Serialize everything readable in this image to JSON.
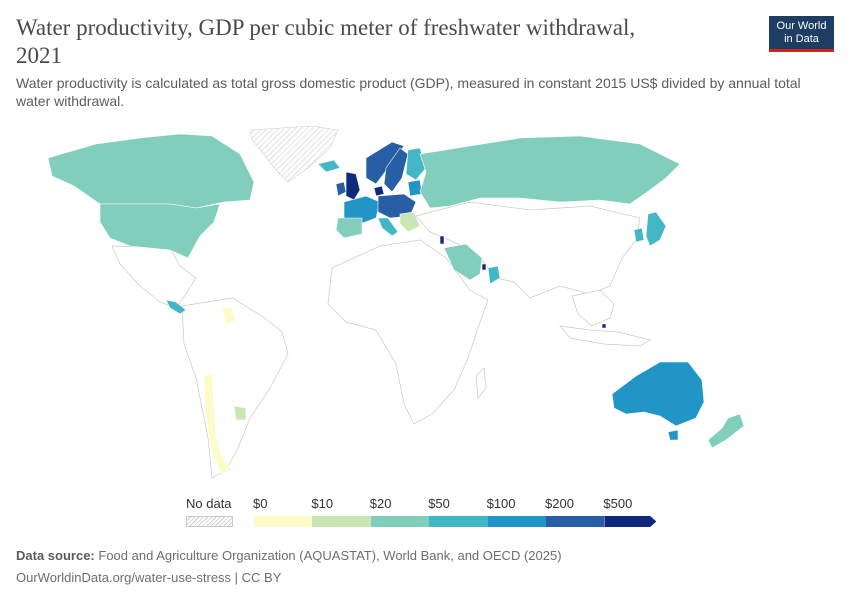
{
  "header": {
    "title_line1": "Water productivity, GDP per cubic meter of freshwater withdrawal,",
    "title_line2": "2021",
    "subtitle": "Water productivity is calculated as total gross domestic product (GDP), measured in constant 2015 US$ divided by annual total water withdrawal.",
    "logo_line1": "Our World",
    "logo_line2": "in Data"
  },
  "legend": {
    "no_data_label": "No data",
    "bins": [
      {
        "label": "$0",
        "color": "#fefbc9"
      },
      {
        "label": "$10",
        "color": "#c9e7b5"
      },
      {
        "label": "$20",
        "color": "#80cebb"
      },
      {
        "label": "$50",
        "color": "#43b7c6"
      },
      {
        "label": "$100",
        "color": "#2095c6"
      },
      {
        "label": "$200",
        "color": "#275ea5"
      },
      {
        "label": "$500",
        "color": ""
      }
    ],
    "last_color": "#0f2a7d"
  },
  "map": {
    "no_data_color": "#ffffff",
    "regions": [
      {
        "id": "canada",
        "value": 20
      },
      {
        "id": "usa",
        "value": 20
      },
      {
        "id": "greenland",
        "value": null
      },
      {
        "id": "iceland",
        "value": 50
      },
      {
        "id": "chile",
        "value": 0
      },
      {
        "id": "uruguay",
        "value": 10
      },
      {
        "id": "central-america",
        "value": 50
      },
      {
        "id": "guyana",
        "value": 0
      },
      {
        "id": "uk",
        "value": 500
      },
      {
        "id": "ireland",
        "value": 200
      },
      {
        "id": "norway",
        "value": 200
      },
      {
        "id": "sweden",
        "value": 200
      },
      {
        "id": "finland",
        "value": 50
      },
      {
        "id": "denmark",
        "value": 500
      },
      {
        "id": "baltics",
        "value": 100
      },
      {
        "id": "western-europe",
        "value": 100
      },
      {
        "id": "central-europe",
        "value": 200
      },
      {
        "id": "iberia",
        "value": 20
      },
      {
        "id": "italy",
        "value": 50
      },
      {
        "id": "balkans",
        "value": 10
      },
      {
        "id": "russia",
        "value": 20
      },
      {
        "id": "saudi-arabia",
        "value": 20
      },
      {
        "id": "qatar",
        "value": 500
      },
      {
        "id": "oman",
        "value": 50
      },
      {
        "id": "israel",
        "value": 500
      },
      {
        "id": "japan",
        "value": 50
      },
      {
        "id": "korea",
        "value": 50
      },
      {
        "id": "australia",
        "value": 100
      },
      {
        "id": "tasmania",
        "value": 100
      },
      {
        "id": "new-zealand",
        "value": 20
      },
      {
        "id": "singapore",
        "value": 500
      }
    ]
  },
  "footer": {
    "source_label": "Data source:",
    "source_text": "Food and Agriculture Organization (AQUASTAT), World Bank, and OECD (2025)",
    "url": "OurWorldinData.org/water-use-stress | CC BY"
  }
}
